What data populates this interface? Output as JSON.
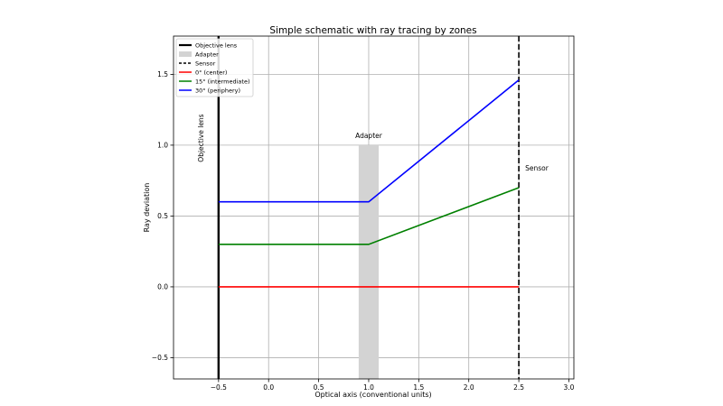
{
  "chart_data": {
    "type": "line",
    "title": "Simple schematic with ray tracing by zones",
    "xlabel": "Optical axis (conventional units)",
    "ylabel": "Ray deviation",
    "xlim": [
      -0.95,
      3.05
    ],
    "ylim": [
      -0.65,
      1.77
    ],
    "xticks": [
      -0.5,
      0.0,
      0.5,
      1.0,
      1.5,
      2.0,
      2.5,
      3.0
    ],
    "xtick_labels": [
      "−0.5",
      "0.0",
      "0.5",
      "1.0",
      "1.5",
      "2.0",
      "2.5",
      "3.0"
    ],
    "yticks": [
      -0.5,
      0.0,
      0.5,
      1.0,
      1.5
    ],
    "ytick_labels": [
      "−0.5",
      "0.0",
      "0.5",
      "1.0",
      "1.5"
    ],
    "grid": true,
    "legend_position": "top-left",
    "objective_lens": {
      "x": -0.5,
      "label": "Objective lens",
      "color": "#000000"
    },
    "adapter": {
      "x_start": 0.9,
      "x_end": 1.1,
      "y_top": 1.0,
      "label": "Adapter",
      "color": "#d3d3d3"
    },
    "sensor": {
      "x": 2.5,
      "label": "Sensor",
      "color": "#000000"
    },
    "series": [
      {
        "name": "0° (center)",
        "color": "#ff0000",
        "x": [
          -0.5,
          1.0,
          2.5
        ],
        "y": [
          0.0,
          0.0,
          0.0
        ]
      },
      {
        "name": "15° (intermediate)",
        "color": "#008000",
        "x": [
          -0.5,
          1.0,
          2.5
        ],
        "y": [
          0.3,
          0.3,
          0.7
        ]
      },
      {
        "name": "30° (periphery)",
        "color": "#0000ff",
        "x": [
          -0.5,
          1.0,
          2.5
        ],
        "y": [
          0.6,
          0.6,
          1.46
        ]
      }
    ],
    "legend": [
      {
        "label": "Objective lens",
        "kind": "solid",
        "color": "#000000"
      },
      {
        "label": "Adapter",
        "kind": "patch",
        "color": "#d3d3d3"
      },
      {
        "label": "Sensor",
        "kind": "dashed",
        "color": "#000000"
      },
      {
        "label": "0° (center)",
        "kind": "line",
        "color": "#ff0000"
      },
      {
        "label": "15° (intermediate)",
        "kind": "line",
        "color": "#008000"
      },
      {
        "label": "30° (periphery)",
        "kind": "line",
        "color": "#0000ff"
      }
    ]
  }
}
